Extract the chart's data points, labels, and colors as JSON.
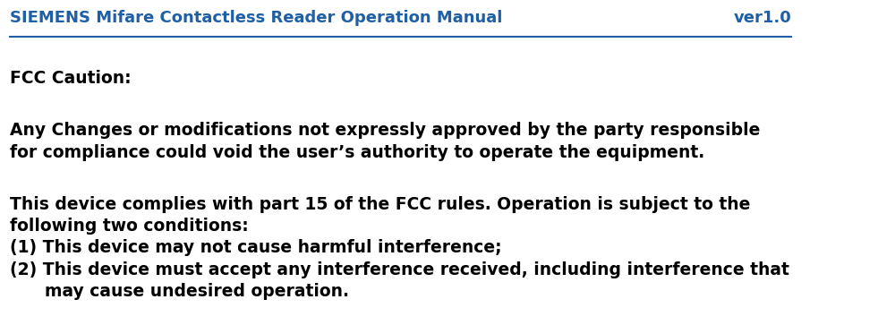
{
  "header_left": "SIEMENS Mifare Contactless Reader Operation Manual",
  "header_right": "ver1.0",
  "header_color": "#1f5fa6",
  "header_fontsize": 13,
  "body_color": "#000000",
  "background_color": "#ffffff",
  "fcc_caution_label": "FCC Caution:",
  "fcc_caution_fontsize": 13.5,
  "paragraph1": "Any Changes or modifications not expressly approved by the party responsible\nfor compliance could void the user’s authority to operate the equipment.",
  "paragraph2_line1": "This device complies with part 15 of the FCC rules. Operation is subject to the",
  "paragraph2_line2": "following two conditions:",
  "paragraph2_line3": "(1) This device may not cause harmful interference;",
  "paragraph2_line4": "(2) This device must accept any interference received, including interference that",
  "paragraph2_line5": "      may cause undesired operation.",
  "body_fontsize": 13.5
}
